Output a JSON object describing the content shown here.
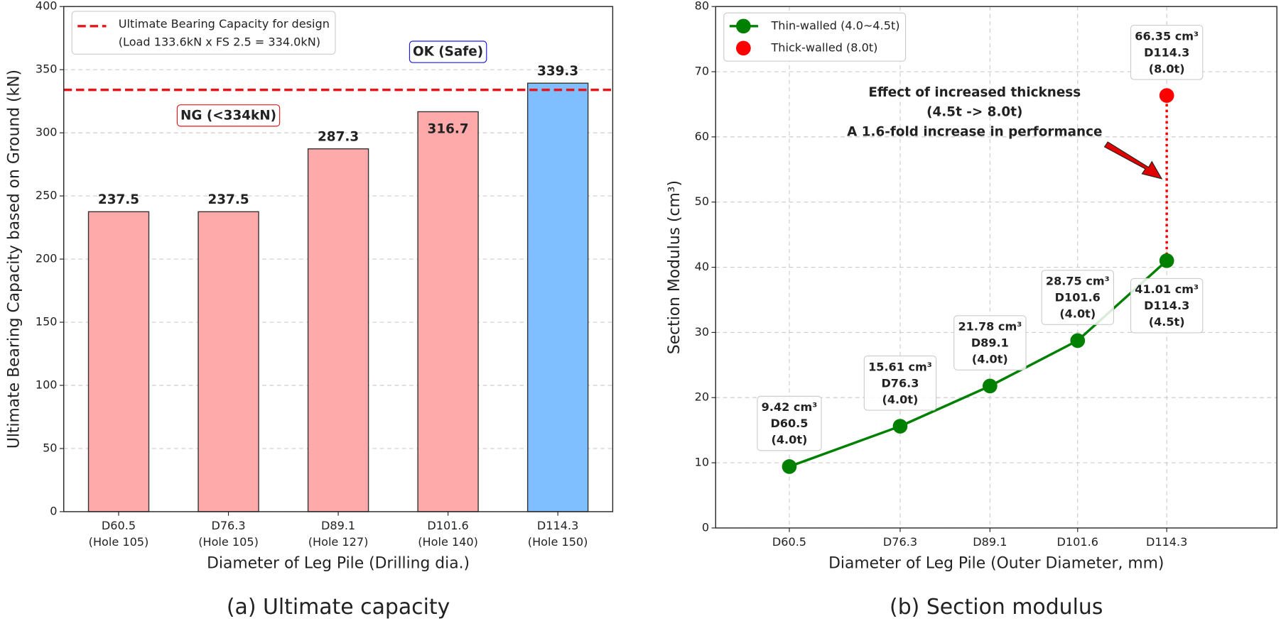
{
  "chart_data": [
    {
      "type": "bar",
      "caption": "(a) Ultimate capacity",
      "xlabel": "Diameter of Leg Pile (Drilling dia.)",
      "ylabel": "Ultimate Bearing Capacity based on Ground (kN)",
      "categories": [
        [
          "D60.5",
          "(Hole 105)"
        ],
        [
          "D76.3",
          "(Hole 105)"
        ],
        [
          "D89.1",
          "(Hole 127)"
        ],
        [
          "D101.6",
          "(Hole 140)"
        ],
        [
          "D114.3",
          "(Hole 150)"
        ]
      ],
      "values": [
        237.5,
        237.5,
        287.3,
        316.7,
        339.3
      ],
      "colors": [
        "#ffaaaa",
        "#ffaaaa",
        "#ffaaaa",
        "#ffaaaa",
        "#80bfff"
      ],
      "ylim": [
        0,
        400
      ],
      "yticks": [
        0,
        50,
        100,
        150,
        200,
        250,
        300,
        350,
        400
      ],
      "grid": true,
      "legend": "upper left",
      "reference_line": {
        "value": 334,
        "color": "#e8141a",
        "label": [
          "Ultimate Bearing Capacity for design",
          "(Load 133.6kN x FS 2.5 = 334.0kN)"
        ]
      },
      "annotations": [
        {
          "text": "OK (Safe)",
          "color": "#1a1ae6"
        },
        {
          "text": "NG (<334kN)",
          "color": "#e8141a"
        }
      ]
    },
    {
      "type": "line",
      "caption": "(b) Section modulus",
      "xlabel": "Diameter of Leg Pile (Outer Diameter, mm)",
      "ylabel": "Section Modulus (cm³)",
      "xlim": [
        50,
        130
      ],
      "xticks": [
        {
          "value": 60.5,
          "label": "D60.5"
        },
        {
          "value": 76.3,
          "label": "D76.3"
        },
        {
          "value": 89.1,
          "label": "D89.1"
        },
        {
          "value": 101.6,
          "label": "D101.6"
        },
        {
          "value": 114.3,
          "label": "D114.3"
        }
      ],
      "ylim": [
        0,
        80
      ],
      "yticks": [
        0,
        10,
        20,
        30,
        40,
        50,
        60,
        70,
        80
      ],
      "grid": true,
      "legend": "upper left",
      "series": [
        {
          "name": "Thin-walled (4.0~4.5t)",
          "color": "#008000",
          "x": [
            60.5,
            76.3,
            89.1,
            101.6,
            114.3
          ],
          "values": [
            9.42,
            15.61,
            21.78,
            28.75,
            41.01
          ],
          "value_labels": [
            "9.42 cm³",
            "15.61 cm³",
            "21.78 cm³",
            "28.75 cm³",
            "41.01 cm³"
          ],
          "point_notes": [
            [
              "D60.5",
              "(4.0t)"
            ],
            [
              "D76.3",
              "(4.0t)"
            ],
            [
              "D89.1",
              "(4.0t)"
            ],
            [
              "D101.6",
              "(4.0t)"
            ],
            [
              "D114.3",
              "(4.5t)"
            ]
          ]
        },
        {
          "name": "Thick-walled (8.0t)",
          "color": "#ff0000",
          "style": "markers",
          "x": [
            114.3
          ],
          "values": [
            66.35
          ],
          "value_labels": [
            "66.35 cm³"
          ],
          "point_notes": [
            [
              "D114.3",
              "(8.0t)"
            ]
          ]
        }
      ],
      "annotation": [
        "Effect of increased thickness",
        "(4.5t -> 8.0t)",
        "A 1.6-fold increase in performance"
      ]
    }
  ]
}
